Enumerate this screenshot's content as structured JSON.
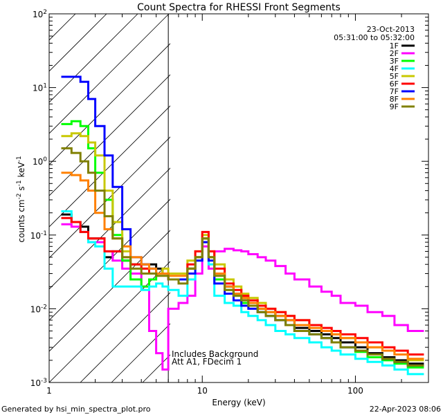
{
  "chart_data": {
    "type": "line",
    "title": "Count Spectra for RHESSI Front Segments",
    "xlabel": "Energy (keV)",
    "ylabel": "counts cm^-2 s^-1 keV^-1",
    "ylabel_parts": {
      "base": "counts cm",
      "e1": "-2",
      "mid": " s",
      "e2": "-1",
      "unit": " keV",
      "e3": "-1"
    },
    "x_scale": "log",
    "y_scale": "log",
    "xlim": [
      1,
      300
    ],
    "ylim": [
      0.001,
      100
    ],
    "x_ticks": [
      1,
      10,
      100
    ],
    "x_tick_labels": [
      "1",
      "10",
      "100"
    ],
    "y_ticks": [
      0.001,
      0.01,
      0.1,
      1,
      10,
      100
    ],
    "y_tick_labels": [
      {
        "base": "10",
        "exp": "-3"
      },
      {
        "base": "10",
        "exp": "-2"
      },
      {
        "base": "10",
        "exp": "-1"
      },
      {
        "base": "10",
        "exp": "0"
      },
      {
        "base": "10",
        "exp": "1"
      },
      {
        "base": "10",
        "exp": "2"
      }
    ],
    "date": "23-Oct-2013",
    "time_range": "05:31:00 to 05:32:00",
    "hatched_region_max_kev": 6.0,
    "annotations": [
      "Includes Background",
      "Att A1, FDecim 1"
    ],
    "legend_position": "top-right",
    "series": [
      {
        "name": "1F",
        "color": "#000000",
        "values": [
          0.19,
          0.15,
          0.13,
          0.09,
          0.09,
          0.05,
          0.06,
          0.045,
          0.04,
          0.04,
          0.04,
          0.035,
          0.03,
          0.025,
          0.025,
          0.035,
          0.05,
          0.09,
          0.05,
          0.03,
          0.02,
          0.016,
          0.014,
          0.012,
          0.01,
          0.009,
          0.008,
          0.007,
          0.0055,
          0.005,
          0.0045,
          0.004,
          0.0035,
          0.003,
          0.0025,
          0.0022,
          0.002,
          0.0018
        ]
      },
      {
        "name": "2F",
        "color": "#ff00ff",
        "values": [
          0.14,
          0.13,
          0.11,
          0.08,
          0.08,
          0.06,
          0.045,
          0.035,
          0.03,
          0.02,
          0.005,
          0.0025,
          0.0015,
          0.01,
          0.012,
          0.015,
          0.03,
          0.07,
          0.035,
          0.06,
          0.065,
          0.062,
          0.06,
          0.055,
          0.05,
          0.045,
          0.038,
          0.03,
          0.025,
          0.02,
          0.017,
          0.015,
          0.012,
          0.011,
          0.009,
          0.008,
          0.006,
          0.005
        ]
      },
      {
        "name": "3F",
        "color": "#00ff00",
        "values": [
          3.2,
          3.5,
          3.0,
          1.5,
          0.7,
          0.3,
          0.1,
          0.045,
          0.025,
          0.02,
          0.025,
          0.03,
          0.03,
          0.025,
          0.025,
          0.035,
          0.05,
          0.09,
          0.05,
          0.025,
          0.018,
          0.015,
          0.012,
          0.011,
          0.009,
          0.008,
          0.007,
          0.006,
          0.005,
          0.0045,
          0.004,
          0.0035,
          0.003,
          0.0026,
          0.0022,
          0.002,
          0.0018,
          0.0016
        ]
      },
      {
        "name": "4F",
        "color": "#00ffff",
        "values": [
          0.21,
          0.15,
          0.11,
          0.08,
          0.07,
          0.035,
          0.02,
          0.02,
          0.02,
          0.018,
          0.02,
          0.022,
          0.02,
          0.018,
          0.015,
          0.025,
          0.045,
          0.08,
          0.04,
          0.015,
          0.012,
          0.011,
          0.009,
          0.008,
          0.007,
          0.006,
          0.005,
          0.0045,
          0.004,
          0.0035,
          0.003,
          0.0027,
          0.0024,
          0.0021,
          0.0019,
          0.0017,
          0.0015,
          0.0013
        ]
      },
      {
        "name": "5F",
        "color": "#c8c800",
        "values": [
          2.2,
          2.4,
          2.2,
          1.8,
          1.2,
          0.4,
          0.15,
          0.06,
          0.04,
          0.035,
          0.035,
          0.03,
          0.035,
          0.03,
          0.03,
          0.045,
          0.06,
          0.1,
          0.06,
          0.04,
          0.025,
          0.02,
          0.016,
          0.014,
          0.012,
          0.01,
          0.009,
          0.008,
          0.007,
          0.006,
          0.005,
          0.0045,
          0.004,
          0.0035,
          0.003,
          0.0027,
          0.0024,
          0.002
        ]
      },
      {
        "name": "6F",
        "color": "#ff0000",
        "values": [
          0.17,
          0.15,
          0.11,
          0.09,
          0.09,
          0.06,
          0.06,
          0.05,
          0.04,
          0.035,
          0.03,
          0.03,
          0.03,
          0.025,
          0.025,
          0.04,
          0.06,
          0.11,
          0.06,
          0.035,
          0.022,
          0.018,
          0.015,
          0.013,
          0.011,
          0.01,
          0.009,
          0.008,
          0.007,
          0.006,
          0.0055,
          0.005,
          0.0045,
          0.004,
          0.0035,
          0.003,
          0.0027,
          0.0024
        ]
      },
      {
        "name": "7F",
        "color": "#0000ff",
        "values": [
          14,
          14,
          12,
          7,
          3,
          1.2,
          0.45,
          0.12,
          0.05,
          0.04,
          0.035,
          0.03,
          0.03,
          0.025,
          0.025,
          0.03,
          0.045,
          0.08,
          0.045,
          0.022,
          0.016,
          0.013,
          0.011,
          0.01,
          0.009,
          0.008,
          0.007,
          0.006,
          0.005,
          0.0045,
          0.004,
          0.0035,
          0.003,
          0.0027,
          0.0024,
          0.0021,
          0.0019,
          0.0017
        ]
      },
      {
        "name": "8F",
        "color": "#ff8000",
        "values": [
          0.7,
          0.65,
          0.55,
          0.4,
          0.2,
          0.12,
          0.09,
          0.07,
          0.05,
          0.04,
          0.035,
          0.03,
          0.03,
          0.028,
          0.028,
          0.035,
          0.05,
          0.09,
          0.05,
          0.03,
          0.02,
          0.016,
          0.014,
          0.012,
          0.01,
          0.009,
          0.008,
          0.007,
          0.006,
          0.0055,
          0.005,
          0.0045,
          0.004,
          0.0035,
          0.003,
          0.0027,
          0.0024,
          0.0021
        ]
      },
      {
        "name": "9F",
        "color": "#808000",
        "values": [
          1.5,
          1.3,
          1.0,
          0.7,
          0.4,
          0.18,
          0.09,
          0.05,
          0.035,
          0.03,
          0.03,
          0.028,
          0.028,
          0.025,
          0.022,
          0.035,
          0.05,
          0.09,
          0.05,
          0.028,
          0.018,
          0.015,
          0.013,
          0.011,
          0.009,
          0.008,
          0.007,
          0.006,
          0.005,
          0.0045,
          0.004,
          0.0035,
          0.003,
          0.0027,
          0.0024,
          0.0021,
          0.0019,
          0.0017
        ]
      }
    ],
    "energy_edges": [
      1.2,
      1.4,
      1.6,
      1.8,
      2.0,
      2.3,
      2.6,
      3.0,
      3.4,
      4.0,
      4.5,
      5.0,
      5.5,
      6.0,
      7.0,
      8.0,
      9.0,
      10.0,
      11.0,
      12.0,
      14.0,
      16.0,
      18.0,
      20.0,
      23.0,
      26.0,
      30.0,
      35.0,
      40.0,
      50.0,
      60.0,
      70.0,
      80.0,
      100.0,
      120.0,
      150.0,
      180.0,
      220.0,
      280.0
    ]
  },
  "footer": {
    "generated_by": "Generated by hsi_min_spectra_plot.pro",
    "timestamp": "22-Apr-2023 08:06"
  }
}
